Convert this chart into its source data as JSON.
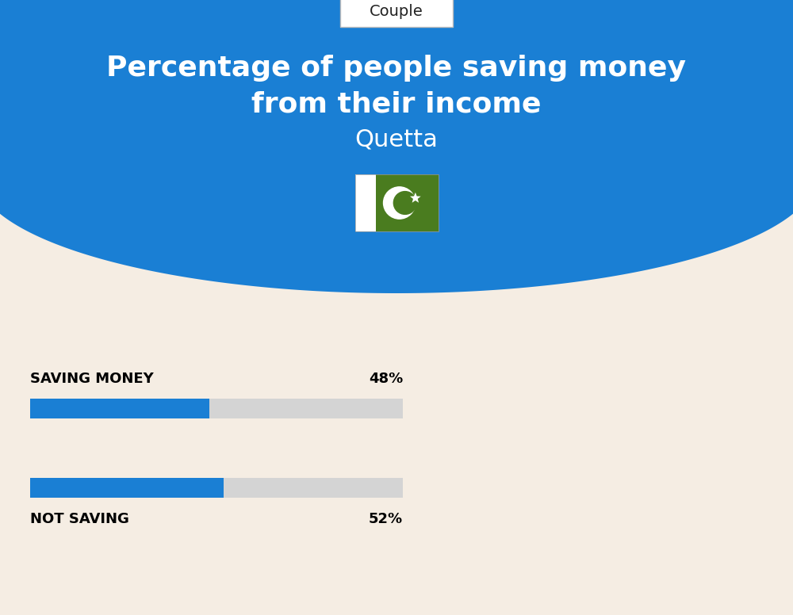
{
  "title_line1": "Percentage of people saving money",
  "title_line2": "from their income",
  "subtitle": "Quetta",
  "tab_label": "Couple",
  "saving_label": "SAVING MONEY",
  "saving_value": 48,
  "saving_pct_text": "48%",
  "not_saving_label": "NOT SAVING",
  "not_saving_value": 52,
  "not_saving_pct_text": "52%",
  "bar_color": "#1a7fd4",
  "bar_bg_color": "#d4d4d4",
  "bg_top_color": "#1a7fd4",
  "bg_bottom_color": "#f5ede3",
  "title_color": "#ffffff",
  "subtitle_color": "#ffffff",
  "label_color": "#000000",
  "tab_bg": "#ffffff",
  "tab_border": "#cccccc",
  "flag_green": "#4a7c1f",
  "flag_white": "#ffffff"
}
